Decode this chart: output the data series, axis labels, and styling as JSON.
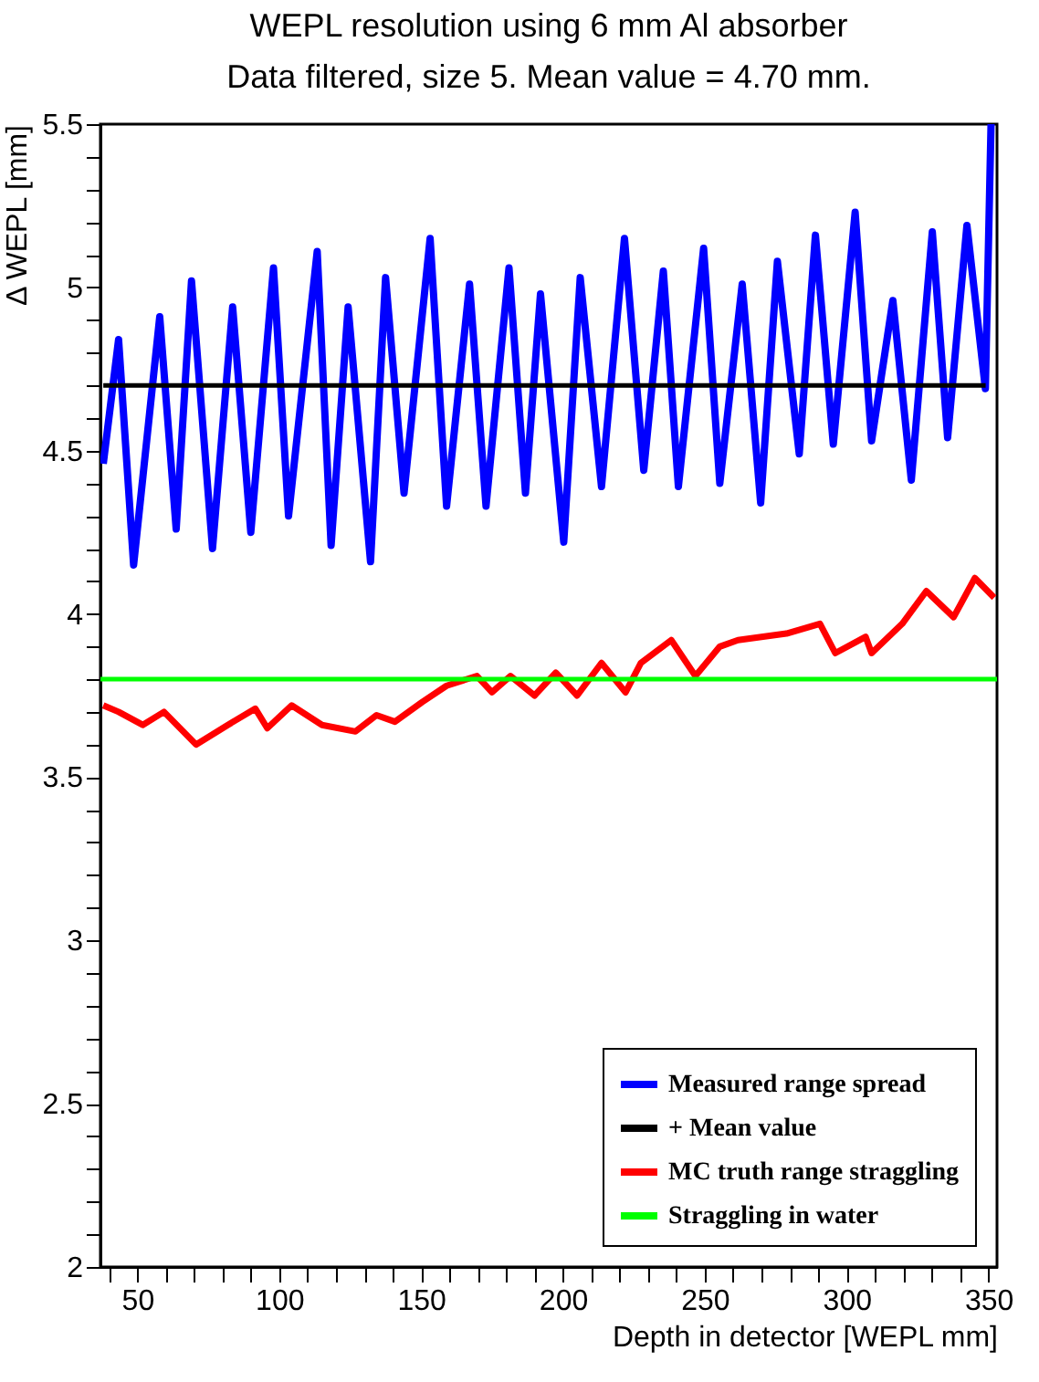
{
  "chart_data": {
    "type": "line",
    "title": "WEPL resolution using 6 mm Al absorber",
    "subtitle": "Data filtered, size 5. Mean value = 4.70 mm.",
    "xlabel": "Depth in detector [WEPL mm]",
    "ylabel": "Δ WEPL [mm]",
    "xlim": [
      37,
      353
    ],
    "ylim": [
      2,
      5.5
    ],
    "xticks": [
      {
        "value": 40,
        "label": null
      },
      50,
      {
        "value": 60,
        "label": null
      },
      {
        "value": 70,
        "label": null
      },
      {
        "value": 80,
        "label": null
      },
      {
        "value": 90,
        "label": null
      },
      100,
      {
        "value": 110,
        "label": null
      },
      {
        "value": 120,
        "label": null
      },
      {
        "value": 130,
        "label": null
      },
      {
        "value": 140,
        "label": null
      },
      150,
      {
        "value": 160,
        "label": null
      },
      {
        "value": 170,
        "label": null
      },
      {
        "value": 180,
        "label": null
      },
      {
        "value": 190,
        "label": null
      },
      200,
      {
        "value": 210,
        "label": null
      },
      {
        "value": 220,
        "label": null
      },
      {
        "value": 230,
        "label": null
      },
      {
        "value": 240,
        "label": null
      },
      250,
      {
        "value": 260,
        "label": null
      },
      {
        "value": 270,
        "label": null
      },
      {
        "value": 280,
        "label": null
      },
      {
        "value": 290,
        "label": null
      },
      300,
      {
        "value": 310,
        "label": null
      },
      {
        "value": 320,
        "label": null
      },
      {
        "value": 330,
        "label": null
      },
      {
        "value": 340,
        "label": null
      },
      350
    ],
    "yticks": [
      2,
      {
        "value": 2.1,
        "label": null
      },
      {
        "value": 2.2,
        "label": null
      },
      {
        "value": 2.3,
        "label": null
      },
      {
        "value": 2.4,
        "label": null
      },
      2.5,
      {
        "value": 2.6,
        "label": null
      },
      {
        "value": 2.7,
        "label": null
      },
      {
        "value": 2.8,
        "label": null
      },
      {
        "value": 2.9,
        "label": null
      },
      3,
      {
        "value": 3.1,
        "label": null
      },
      {
        "value": 3.2,
        "label": null
      },
      {
        "value": 3.3,
        "label": null
      },
      {
        "value": 3.4,
        "label": null
      },
      3.5,
      {
        "value": 3.6,
        "label": null
      },
      {
        "value": 3.7,
        "label": null
      },
      {
        "value": 3.8,
        "label": null
      },
      {
        "value": 3.9,
        "label": null
      },
      4,
      {
        "value": 4.1,
        "label": null
      },
      {
        "value": 4.2,
        "label": null
      },
      {
        "value": 4.3,
        "label": null
      },
      {
        "value": 4.4,
        "label": null
      },
      4.5,
      {
        "value": 4.6,
        "label": null
      },
      {
        "value": 4.7,
        "label": null
      },
      {
        "value": 4.8,
        "label": null
      },
      {
        "value": 4.9,
        "label": null
      },
      5,
      {
        "value": 5.1,
        "label": null
      },
      {
        "value": 5.2,
        "label": null
      },
      {
        "value": 5.3,
        "label": null
      },
      {
        "value": 5.4,
        "label": null
      },
      5.5
    ],
    "grid": false,
    "legend": "bottom right",
    "marker": "none",
    "line_style": "solid",
    "series": [
      {
        "name": "Measured range spread",
        "color": "#0000ff",
        "x": [
          38,
          43.4,
          48.7,
          57.9,
          63.7,
          69.1,
          76.5,
          83.6,
          90,
          98,
          103.3,
          113.4,
          118.3,
          124.3,
          132.2,
          137.5,
          144,
          153.2,
          159,
          167.1,
          172.9,
          181,
          186.8,
          192.1,
          200.3,
          206.1,
          213.6,
          221.7,
          228.5,
          235.4,
          240.7,
          249.6,
          255.3,
          263.2,
          269.7,
          275.6,
          283.3,
          289,
          295.3,
          303,
          308.8,
          316.3,
          322.8,
          330.2,
          335.6,
          342.4,
          348.9,
          350.9
        ],
        "values": [
          4.46,
          4.84,
          4.15,
          4.91,
          4.26,
          5.02,
          4.2,
          4.94,
          4.25,
          5.06,
          4.3,
          5.11,
          4.21,
          4.94,
          4.16,
          5.03,
          4.37,
          5.15,
          4.33,
          5.01,
          4.33,
          5.06,
          4.37,
          4.98,
          4.22,
          5.03,
          4.39,
          5.15,
          4.44,
          5.05,
          4.39,
          5.12,
          4.4,
          5.01,
          4.34,
          5.08,
          4.49,
          5.16,
          4.52,
          5.23,
          4.53,
          4.96,
          4.41,
          5.17,
          4.54,
          5.19,
          4.69,
          5.5
        ]
      },
      {
        "name": "   + Mean value",
        "color": "#000000",
        "x": [
          38,
          349
        ],
        "values": [
          4.7,
          4.7
        ]
      },
      {
        "name": "MC truth range straggling",
        "color": "#ff0000",
        "x": [
          38,
          43.4,
          51.9,
          59.4,
          70.7,
          81.9,
          91.6,
          95.8,
          104.4,
          115.1,
          126.9,
          134.3,
          140.8,
          150.4,
          159,
          169.7,
          175,
          181.5,
          190,
          197.5,
          205,
          213.6,
          222.1,
          227.5,
          238.2,
          246.7,
          255.3,
          261.7,
          278.8,
          290.6,
          296,
          306.7,
          308.8,
          319.6,
          328.1,
          337.7,
          345.2,
          352
        ],
        "values": [
          3.72,
          3.7,
          3.66,
          3.7,
          3.6,
          3.66,
          3.71,
          3.65,
          3.72,
          3.66,
          3.64,
          3.69,
          3.67,
          3.73,
          3.78,
          3.81,
          3.76,
          3.81,
          3.75,
          3.82,
          3.75,
          3.85,
          3.76,
          3.85,
          3.92,
          3.81,
          3.9,
          3.92,
          3.94,
          3.97,
          3.88,
          3.93,
          3.88,
          3.97,
          4.07,
          3.99,
          4.11,
          4.05
        ]
      },
      {
        "name": "Straggling in water",
        "color": "#00ff00",
        "x": [
          37,
          353
        ],
        "values": [
          3.8,
          3.8
        ]
      }
    ]
  }
}
